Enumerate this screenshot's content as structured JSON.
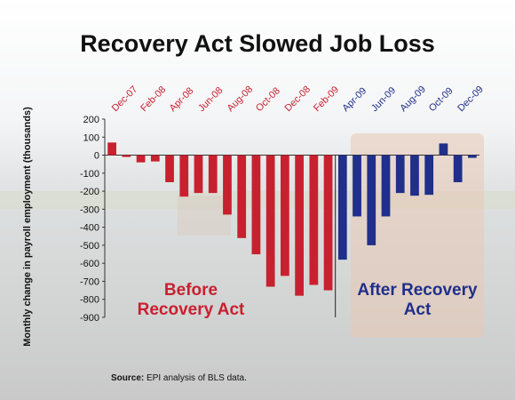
{
  "chart_data": {
    "type": "bar",
    "title": "Recovery Act Slowed Job Loss",
    "y_label": "Monthly change in payroll employment (thousands)",
    "source_label": "Source:",
    "source": "EPI analysis of BLS data.",
    "categories": [
      "Dec-07",
      null,
      "Feb-08",
      null,
      "Apr-08",
      null,
      "Jun-08",
      null,
      "Aug-08",
      null,
      "Oct-08",
      null,
      "Dec-08",
      null,
      "Feb-09",
      null,
      "Apr-09",
      null,
      "Jun-09",
      null,
      "Aug-09",
      null,
      "Oct-09",
      null,
      "Dec-09",
      null
    ],
    "series": [
      {
        "name": "Before Recovery Act",
        "color": "#c8202f",
        "values": [
          70,
          -10,
          -40,
          -35,
          -150,
          -230,
          -210,
          -210,
          -330,
          -460,
          -550,
          -730,
          -670,
          -780,
          -720,
          -750,
          null,
          null,
          null,
          null,
          null,
          null,
          null,
          null,
          null,
          null
        ]
      },
      {
        "name": "After Recovery Act",
        "color": "#1f2f8a",
        "values": [
          null,
          null,
          null,
          null,
          null,
          null,
          null,
          null,
          null,
          null,
          null,
          null,
          null,
          null,
          null,
          null,
          -580,
          -340,
          -500,
          -340,
          -210,
          -225,
          -220,
          65,
          -150,
          -15
        ]
      }
    ],
    "ylim": [
      -900,
      200
    ],
    "yticks": [
      200,
      100,
      0,
      -100,
      -200,
      -300,
      -400,
      -500,
      -600,
      -700,
      -800,
      -900
    ]
  }
}
